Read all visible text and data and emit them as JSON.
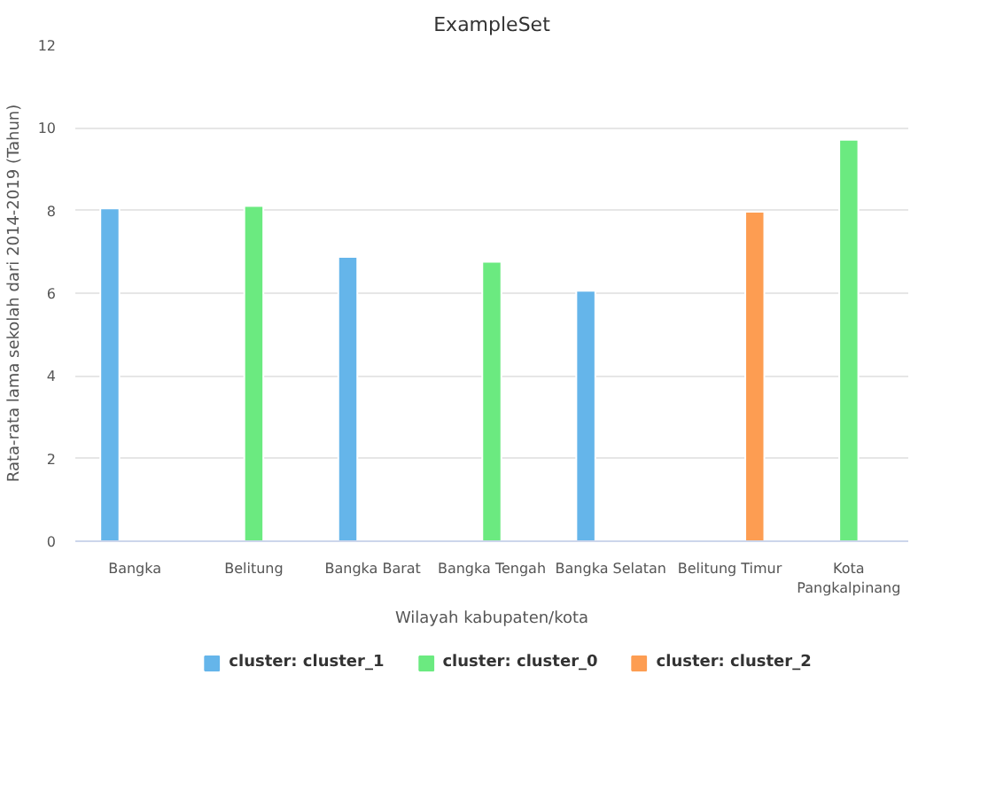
{
  "chart_data": {
    "type": "bar",
    "title": "ExampleSet",
    "xlabel": "Wilayah kabupaten/kota",
    "ylabel": "Rata-rata lama sekolah dari 2014-2019 (Tahun)",
    "categories": [
      "Bangka",
      "Belitung",
      "Bangka Barat",
      "Bangka Tengah",
      "Bangka Selatan",
      "Belitung Timur",
      "Kota Pangkalpinang"
    ],
    "series": [
      {
        "name": "cluster: cluster_1",
        "color": "#65b5ea",
        "values": [
          8.05,
          null,
          6.88,
          null,
          6.06,
          null,
          null
        ]
      },
      {
        "name": "cluster: cluster_0",
        "color": "#6bea80",
        "values": [
          null,
          8.11,
          null,
          6.76,
          null,
          null,
          9.71
        ]
      },
      {
        "name": "cluster: cluster_2",
        "color": "#fd9d52",
        "values": [
          null,
          null,
          null,
          null,
          null,
          7.97,
          null
        ]
      }
    ],
    "ylim": [
      0,
      12
    ],
    "yticks": [
      0,
      2,
      4,
      6,
      8,
      10,
      12
    ],
    "grid": "y",
    "legend": "bottom"
  }
}
